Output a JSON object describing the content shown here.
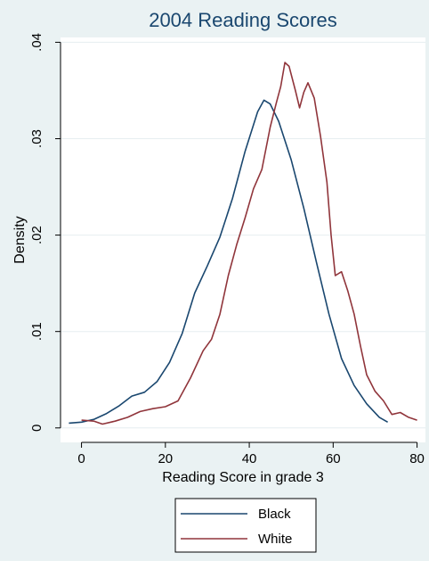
{
  "chart_data": {
    "type": "line",
    "title": "2004 Reading Scores",
    "xlabel": "Reading Score in grade 3",
    "ylabel": "Density",
    "xlim": [
      -5,
      82
    ],
    "ylim": [
      -0.0015,
      0.0405
    ],
    "x_ticks": [
      0,
      20,
      40,
      60,
      80
    ],
    "x_tick_labels": [
      "0",
      "20",
      "40",
      "60",
      "80"
    ],
    "y_ticks": [
      0,
      0.01,
      0.02,
      0.03,
      0.04
    ],
    "y_tick_labels": [
      "0",
      ".01",
      ".02",
      ".03",
      ".04"
    ],
    "grid": true,
    "legend_position": "bottom",
    "series": [
      {
        "name": "Black",
        "color": "#1a476f",
        "points": [
          [
            -3,
            0.0005
          ],
          [
            0,
            0.0006
          ],
          [
            3,
            0.0009
          ],
          [
            6,
            0.0015
          ],
          [
            9,
            0.0023
          ],
          [
            12,
            0.0033
          ],
          [
            15,
            0.0037
          ],
          [
            18,
            0.0048
          ],
          [
            21,
            0.0068
          ],
          [
            24,
            0.0098
          ],
          [
            27,
            0.014
          ],
          [
            30,
            0.0168
          ],
          [
            33,
            0.0198
          ],
          [
            36,
            0.0238
          ],
          [
            39,
            0.0287
          ],
          [
            42,
            0.0328
          ],
          [
            43.5,
            0.034
          ],
          [
            45,
            0.0336
          ],
          [
            47,
            0.0318
          ],
          [
            50,
            0.0278
          ],
          [
            53,
            0.0228
          ],
          [
            56,
            0.0172
          ],
          [
            59,
            0.0118
          ],
          [
            62,
            0.0072
          ],
          [
            65,
            0.0044
          ],
          [
            68,
            0.0025
          ],
          [
            71,
            0.0011
          ],
          [
            73,
            0.0006
          ]
        ]
      },
      {
        "name": "White",
        "color": "#90353b",
        "points": [
          [
            0,
            0.0008
          ],
          [
            3,
            0.0007
          ],
          [
            5,
            0.0004
          ],
          [
            8,
            0.0007
          ],
          [
            11,
            0.0011
          ],
          [
            14,
            0.0017
          ],
          [
            17,
            0.002
          ],
          [
            20,
            0.0022
          ],
          [
            23,
            0.0028
          ],
          [
            26,
            0.0052
          ],
          [
            29,
            0.008
          ],
          [
            31,
            0.0092
          ],
          [
            33,
            0.0118
          ],
          [
            35,
            0.0158
          ],
          [
            37,
            0.019
          ],
          [
            39,
            0.0218
          ],
          [
            41,
            0.0248
          ],
          [
            43,
            0.0268
          ],
          [
            45,
            0.0312
          ],
          [
            46.5,
            0.0338
          ],
          [
            47.5,
            0.0354
          ],
          [
            48.5,
            0.0379
          ],
          [
            49.5,
            0.0375
          ],
          [
            51,
            0.035
          ],
          [
            52,
            0.0332
          ],
          [
            53,
            0.0348
          ],
          [
            54,
            0.0358
          ],
          [
            55.5,
            0.0342
          ],
          [
            57,
            0.0302
          ],
          [
            58.5,
            0.0255
          ],
          [
            59.5,
            0.02
          ],
          [
            60.5,
            0.0158
          ],
          [
            62,
            0.0162
          ],
          [
            63.5,
            0.0142
          ],
          [
            65,
            0.0118
          ],
          [
            66.5,
            0.0085
          ],
          [
            68,
            0.0055
          ],
          [
            70,
            0.0038
          ],
          [
            72,
            0.0028
          ],
          [
            74,
            0.0014
          ],
          [
            76,
            0.0016
          ],
          [
            78,
            0.0011
          ],
          [
            80,
            0.0008
          ]
        ]
      }
    ]
  }
}
